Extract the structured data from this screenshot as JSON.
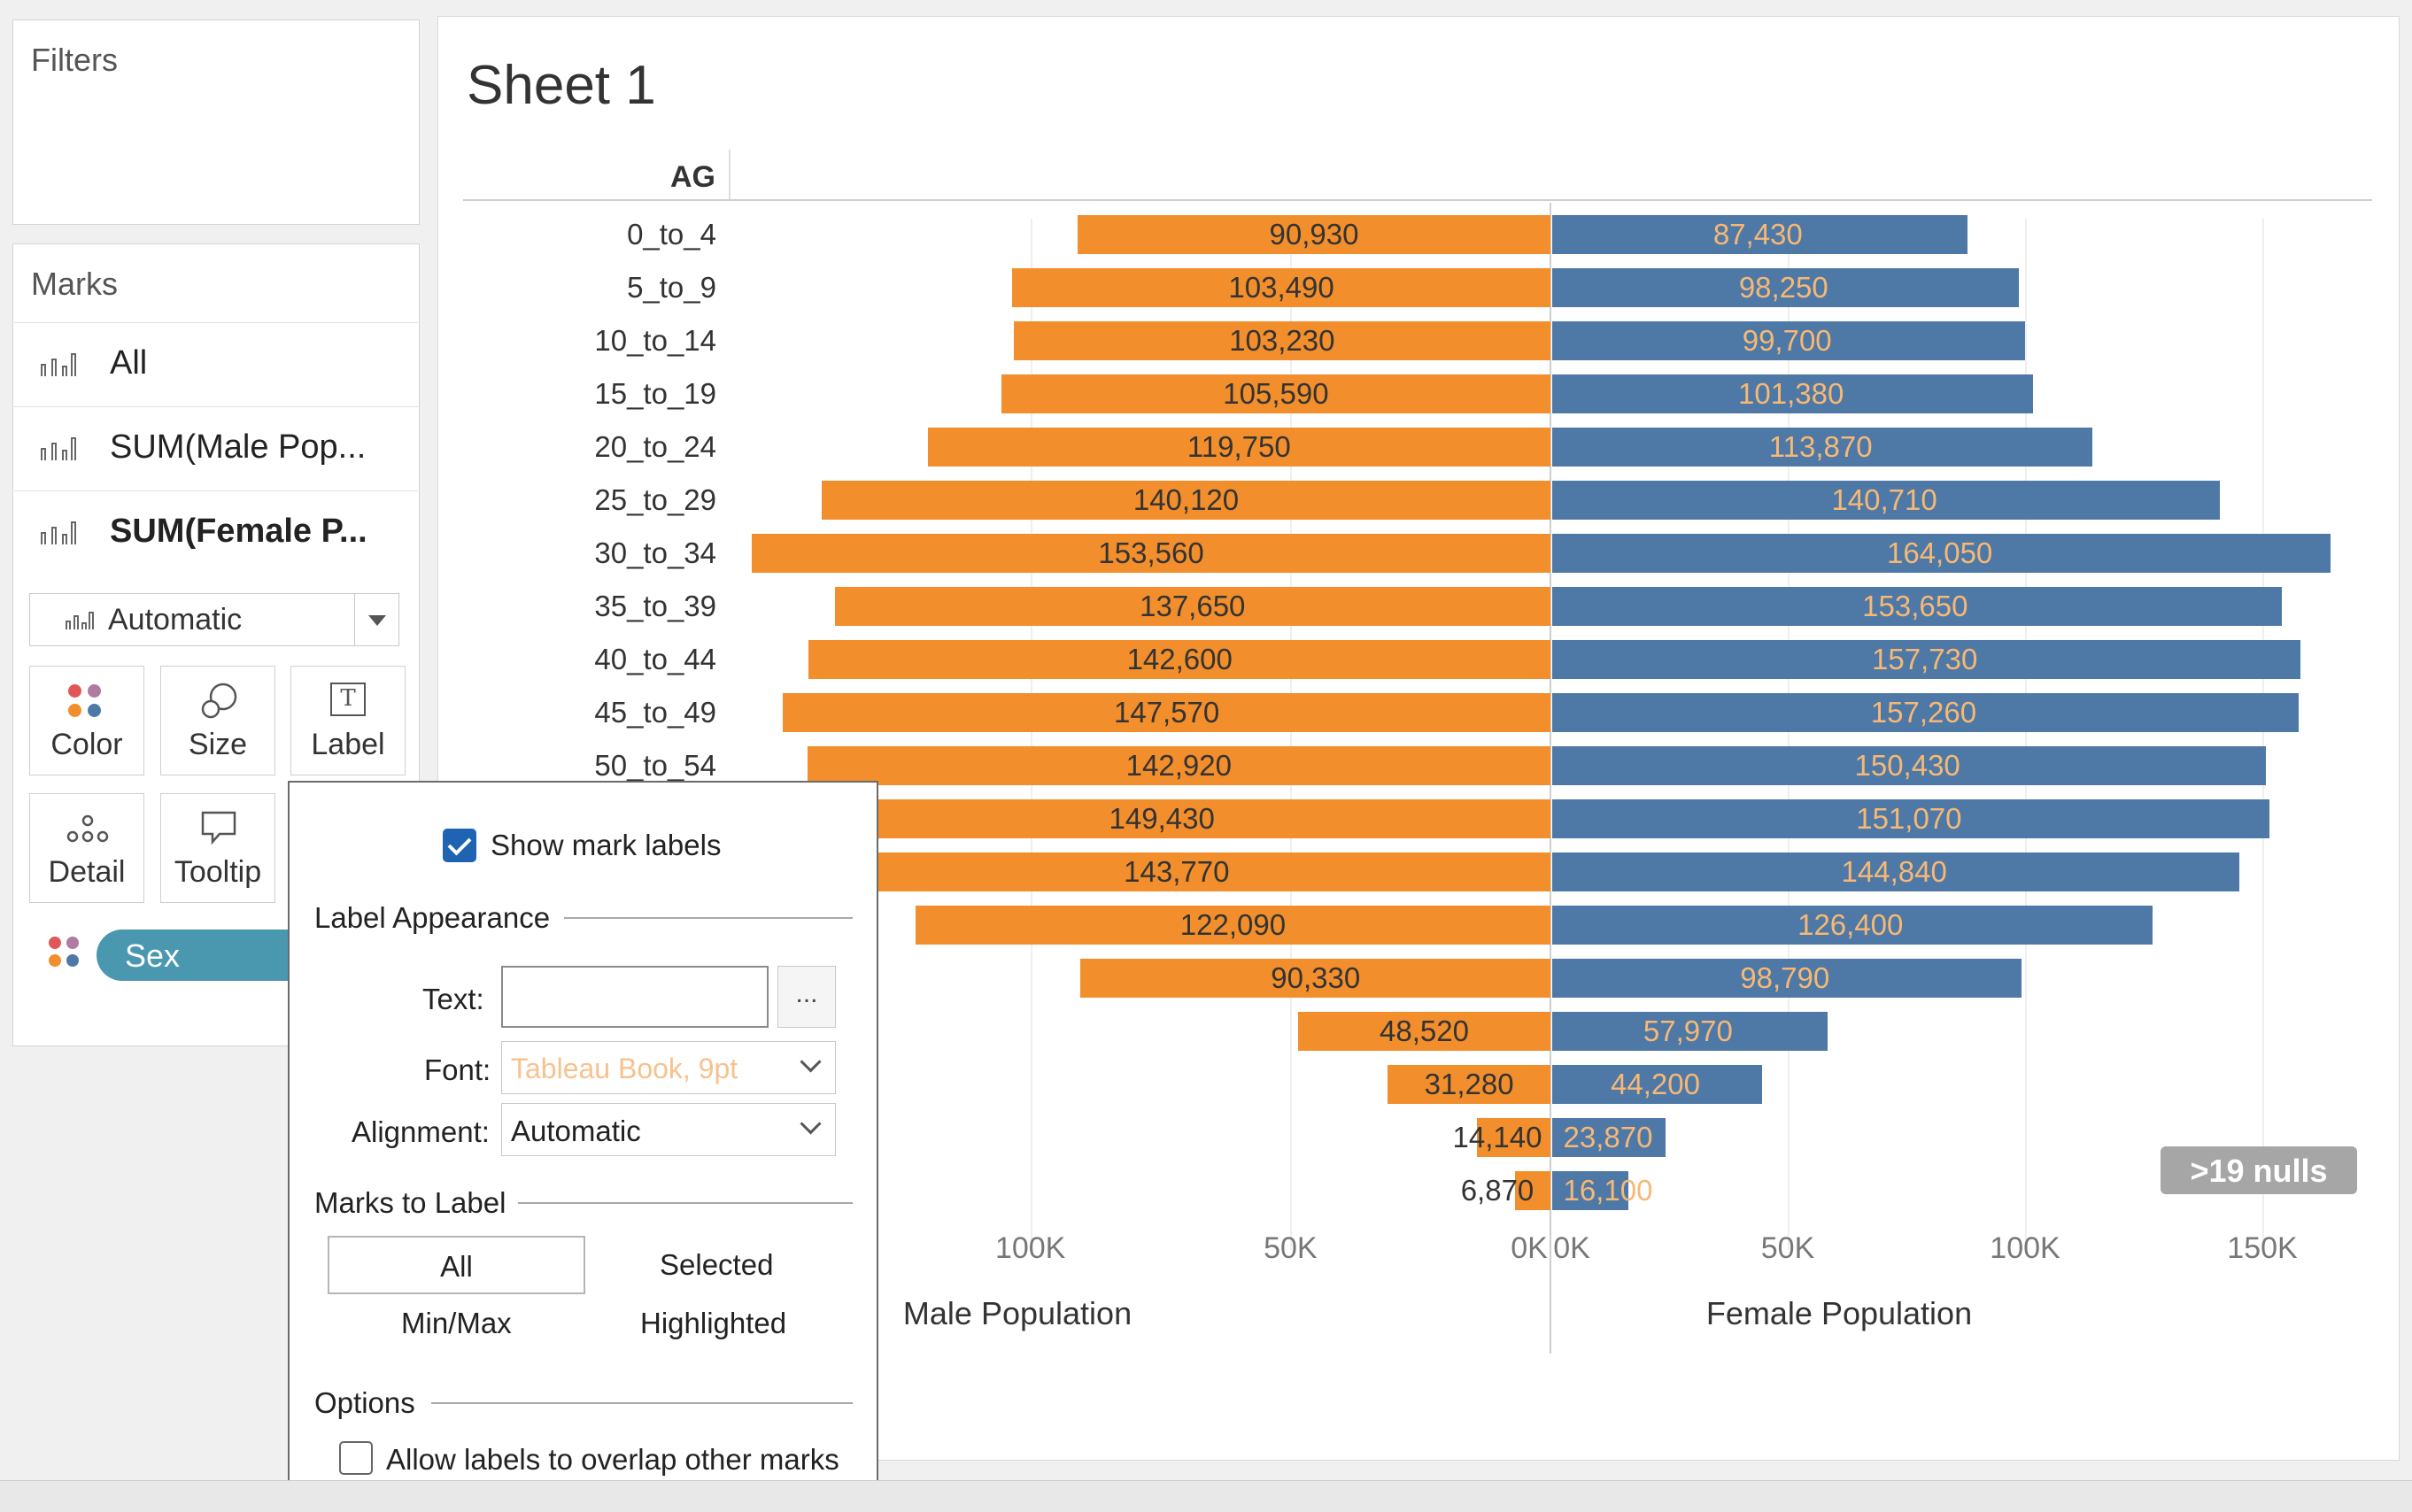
{
  "filters": {
    "title": "Filters"
  },
  "marks": {
    "title": "Marks",
    "rows": [
      {
        "label": "All",
        "bold": false
      },
      {
        "label": "SUM(Male Pop...",
        "bold": false
      },
      {
        "label": "SUM(Female P...",
        "bold": true
      }
    ],
    "mark_type": "Automatic",
    "cards": [
      {
        "label": "Color",
        "icon": "color-dots-icon"
      },
      {
        "label": "Size",
        "icon": "size-icon"
      },
      {
        "label": "Label",
        "icon": "label-T-icon"
      },
      {
        "label": "Detail",
        "icon": "detail-dots-icon"
      },
      {
        "label": "Tooltip",
        "icon": "tooltip-speech-icon"
      }
    ],
    "pill": "Sex"
  },
  "sheet": {
    "title": "Sheet 1",
    "row_header": "AG",
    "nulls_badge": ">19 nulls",
    "male_axis_title": "Male Population",
    "female_axis_title": "Female Population",
    "male_ticks": [
      "100K",
      "50K",
      "0K"
    ],
    "female_ticks": [
      "0K",
      "50K",
      "100K",
      "150K"
    ]
  },
  "chart_data": {
    "type": "bar",
    "orientation": "horizontal-diverging",
    "categories": [
      "0_to_4",
      "5_to_9",
      "10_to_14",
      "15_to_19",
      "20_to_24",
      "25_to_29",
      "30_to_34",
      "35_to_39",
      "40_to_44",
      "45_to_49",
      "50_to_54",
      "",
      "",
      "",
      "",
      "",
      "",
      "",
      ""
    ],
    "series": [
      {
        "name": "Male Population",
        "color": "#f28e2b",
        "values": [
          90930,
          103490,
          103230,
          105590,
          119750,
          140120,
          153560,
          137650,
          142600,
          147570,
          142920,
          149430,
          143770,
          122090,
          90330,
          48520,
          31280,
          14140,
          6870
        ],
        "labels": [
          "90,930",
          "103,490",
          "103,230",
          "105,590",
          "119,750",
          "140,120",
          "153,560",
          "137,650",
          "142,600",
          "147,570",
          "142,920",
          "149,430",
          "143,770",
          "122,090",
          "90,330",
          "48,520",
          "31,280",
          "14,140",
          "6,870"
        ]
      },
      {
        "name": "Female Population",
        "color": "#4e79a7",
        "values": [
          87430,
          98250,
          99700,
          101380,
          113870,
          140710,
          164050,
          153650,
          157730,
          157260,
          150430,
          151070,
          144840,
          126400,
          98790,
          57970,
          44200,
          23870,
          16100
        ],
        "labels": [
          "87,430",
          "98,250",
          "99,700",
          "101,380",
          "113,870",
          "140,710",
          "164,050",
          "153,650",
          "157,730",
          "157,260",
          "150,430",
          "151,070",
          "144,840",
          "126,400",
          "98,790",
          "57,970",
          "44,200",
          "23,870",
          "16,100"
        ]
      }
    ],
    "xlabel_male": "Male Population",
    "xlabel_female": "Female Population",
    "xlim": [
      0,
      170000
    ],
    "grid": true
  },
  "label_popup": {
    "show_mark_labels": "Show mark labels",
    "show_checked": true,
    "label_appearance": "Label Appearance",
    "text_label": "Text:",
    "text_value": "",
    "text_btn": "...",
    "font_label": "Font:",
    "font_value": "Tableau Book, 9pt",
    "alignment_label": "Alignment:",
    "alignment_value": "Automatic",
    "marks_to_label": "Marks to Label",
    "opt_all": "All",
    "opt_selected": "Selected",
    "opt_minmax": "Min/Max",
    "opt_highlighted": "Highlighted",
    "options": "Options",
    "allow_overlap": "Allow labels to overlap other marks",
    "allow_checked": false
  }
}
